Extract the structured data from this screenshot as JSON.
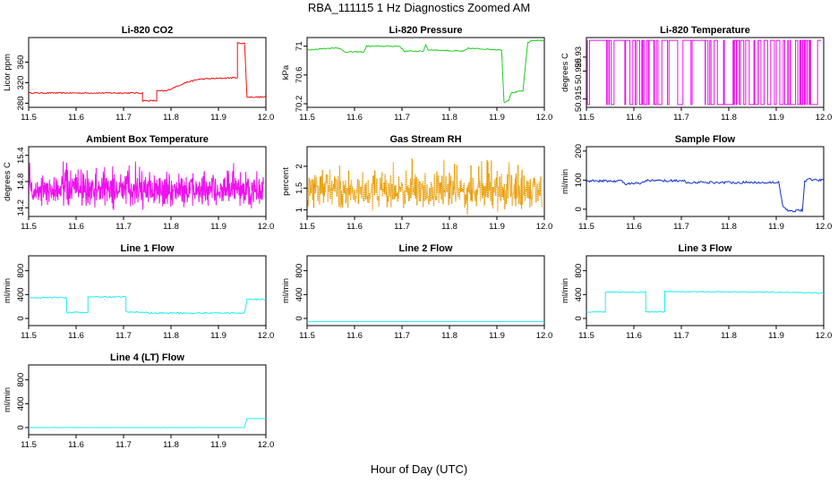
{
  "page": {
    "title": "RBA_111115  1 Hz Diagnostics Zoomed AM",
    "xlabel": "Hour of Day (UTC)"
  },
  "chart_data": [
    {
      "type": "line",
      "title": "Li-820 CO2",
      "ylabel": "Licor ppm",
      "color": "#ee1111",
      "xlim": [
        11.5,
        12.0
      ],
      "ylim": [
        272,
        408
      ],
      "xticks": [
        "11.5",
        "11.6",
        "11.7",
        "11.8",
        "11.9",
        "12.0"
      ],
      "yticks": [
        280,
        320,
        360
      ],
      "series": [
        {
          "x": [
            11.5,
            11.69,
            11.69,
            11.74,
            11.74,
            11.77,
            11.77,
            11.79,
            11.79,
            11.83,
            11.83,
            11.86,
            11.86,
            11.94,
            11.94,
            11.955,
            11.96,
            11.96,
            12.0
          ],
          "y": [
            300,
            300,
            300,
            300,
            285,
            285,
            304,
            304,
            304,
            320,
            320,
            327,
            327,
            330,
            397,
            397,
            295,
            292,
            292
          ],
          "noise": 1.2
        }
      ]
    },
    {
      "type": "line",
      "title": "Li-820 Pressure",
      "ylabel": "kPa",
      "color": "#22cc22",
      "xlim": [
        11.5,
        12.0
      ],
      "ylim": [
        70.15,
        71.12
      ],
      "xticks": [
        "11.5",
        "11.6",
        "11.7",
        "11.8",
        "11.9",
        "12.0"
      ],
      "yticks": [
        70.2,
        70.6,
        71.0
      ],
      "series": [
        {
          "x": [
            11.5,
            11.565,
            11.58,
            11.62,
            11.625,
            11.695,
            11.705,
            11.745,
            11.75,
            11.755,
            11.83,
            11.84,
            11.91,
            11.915,
            11.925,
            11.93,
            11.955,
            11.965,
            11.975,
            12.0
          ],
          "y": [
            70.95,
            70.98,
            70.92,
            70.92,
            71.0,
            71.0,
            70.93,
            70.93,
            71.02,
            70.95,
            70.93,
            70.97,
            70.95,
            70.22,
            70.25,
            70.35,
            70.38,
            71.05,
            71.08,
            71.08
          ],
          "noise": 0.008
        }
      ]
    },
    {
      "type": "line",
      "title": "Li-820 Temperature",
      "ylabel": "degrees C",
      "color": "#ee11ee",
      "xlim": [
        11.5,
        12.0
      ],
      "ylim": [
        50.912,
        50.937
      ],
      "xticks": [
        "11.5",
        "11.6",
        "11.7",
        "11.8",
        "11.9",
        "12.0"
      ],
      "yticks": [
        50.915,
        50.925,
        50.93
      ],
      "series": [
        {
          "kind": "switching",
          "low": 50.913,
          "high": 50.936,
          "x_start": 11.5,
          "x_end": 11.995,
          "switches": 90
        }
      ]
    },
    {
      "type": "line",
      "title": "Ambient Box Temperature",
      "ylabel": "degrees C",
      "color": "#ee11ee",
      "xlim": [
        11.5,
        12.0
      ],
      "ylim": [
        14.0,
        15.6
      ],
      "xticks": [
        "11.5",
        "11.6",
        "11.7",
        "11.8",
        "11.9",
        "12.0"
      ],
      "yticks": [
        14.2,
        14.8,
        15.4
      ],
      "series": [
        {
          "kind": "noise",
          "x_start": 11.5,
          "x_end": 11.995,
          "mean": 14.6,
          "amp": 0.55,
          "points": 700
        }
      ]
    },
    {
      "type": "line",
      "title": "Gas Stream RH",
      "ylabel": "percent",
      "color": "#e89a00",
      "xlim": [
        11.5,
        12.0
      ],
      "ylim": [
        0.85,
        2.45
      ],
      "xticks": [
        "11.5",
        "11.6",
        "11.7",
        "11.8",
        "11.9",
        "12.0"
      ],
      "yticks": [
        1.0,
        1.5,
        2.0
      ],
      "series": [
        {
          "kind": "noise",
          "x_start": 11.5,
          "x_end": 11.995,
          "mean": 1.45,
          "amp": 0.6,
          "points": 600,
          "dotted": true
        }
      ]
    },
    {
      "type": "line",
      "title": "Sample Flow",
      "ylabel": "ml/min",
      "color": "#1133cc",
      "xlim": [
        11.5,
        12.0
      ],
      "ylim": [
        -25,
        215
      ],
      "xticks": [
        "11.5",
        "11.6",
        "11.7",
        "11.8",
        "11.9",
        "12.0"
      ],
      "yticks": [
        0,
        100,
        200
      ],
      "series": [
        {
          "x": [
            11.5,
            11.575,
            11.58,
            11.615,
            11.625,
            11.705,
            11.71,
            11.905,
            11.915,
            11.925,
            11.94,
            11.945,
            11.955,
            11.96,
            11.97,
            12.0
          ],
          "y": [
            97,
            97,
            88,
            88,
            98,
            98,
            92,
            92,
            5,
            -5,
            -8,
            0,
            -5,
            98,
            102,
            100
          ],
          "noise": 4
        }
      ]
    },
    {
      "type": "line",
      "title": "Line 1 Flow",
      "ylabel": "ml/min",
      "color": "#22eeee",
      "xlim": [
        11.5,
        12.0
      ],
      "ylim": [
        -120,
        1050
      ],
      "xticks": [
        "11.5",
        "11.6",
        "11.7",
        "11.8",
        "11.9",
        "12.0"
      ],
      "yticks": [
        0,
        400,
        800
      ],
      "series": [
        {
          "x": [
            11.5,
            11.58,
            11.58,
            11.625,
            11.625,
            11.705,
            11.705,
            11.75,
            11.755,
            11.955,
            11.96,
            12.0
          ],
          "y": [
            350,
            350,
            100,
            100,
            360,
            360,
            110,
            100,
            90,
            90,
            320,
            320
          ],
          "noise": 10
        }
      ]
    },
    {
      "type": "line",
      "title": "Line 2 Flow",
      "ylabel": "ml/min",
      "color": "#22eeee",
      "xlim": [
        11.5,
        12.0
      ],
      "ylim": [
        -120,
        1050
      ],
      "xticks": [
        "11.5",
        "11.6",
        "11.7",
        "11.8",
        "11.9",
        "12.0"
      ],
      "yticks": [
        0,
        400,
        800
      ],
      "series": [
        {
          "x": [
            11.5,
            12.0
          ],
          "y": [
            -55,
            -55
          ],
          "noise": 0
        }
      ]
    },
    {
      "type": "line",
      "title": "Line 3 Flow",
      "ylabel": "ml/min",
      "color": "#22eeee",
      "xlim": [
        11.5,
        12.0
      ],
      "ylim": [
        -120,
        1050
      ],
      "xticks": [
        "11.5",
        "11.6",
        "11.7",
        "11.8",
        "11.9",
        "12.0"
      ],
      "yticks": [
        0,
        400,
        800
      ],
      "series": [
        {
          "x": [
            11.5,
            11.54,
            11.54,
            11.625,
            11.625,
            11.665,
            11.665,
            11.9,
            11.98,
            12.0
          ],
          "y": [
            110,
            110,
            440,
            440,
            110,
            110,
            450,
            440,
            430,
            420
          ],
          "noise": 8
        }
      ]
    },
    {
      "type": "line",
      "title": "Line 4 (LT) Flow",
      "ylabel": "ml/min",
      "color": "#22eeee",
      "xlim": [
        11.5,
        12.0
      ],
      "ylim": [
        -120,
        1050
      ],
      "xticks": [
        "11.5",
        "11.6",
        "11.7",
        "11.8",
        "11.9",
        "12.0"
      ],
      "yticks": [
        0,
        400,
        800
      ],
      "series": [
        {
          "x": [
            11.5,
            11.955,
            11.96,
            12.0
          ],
          "y": [
            0,
            0,
            150,
            150
          ],
          "noise": 2
        }
      ]
    }
  ]
}
